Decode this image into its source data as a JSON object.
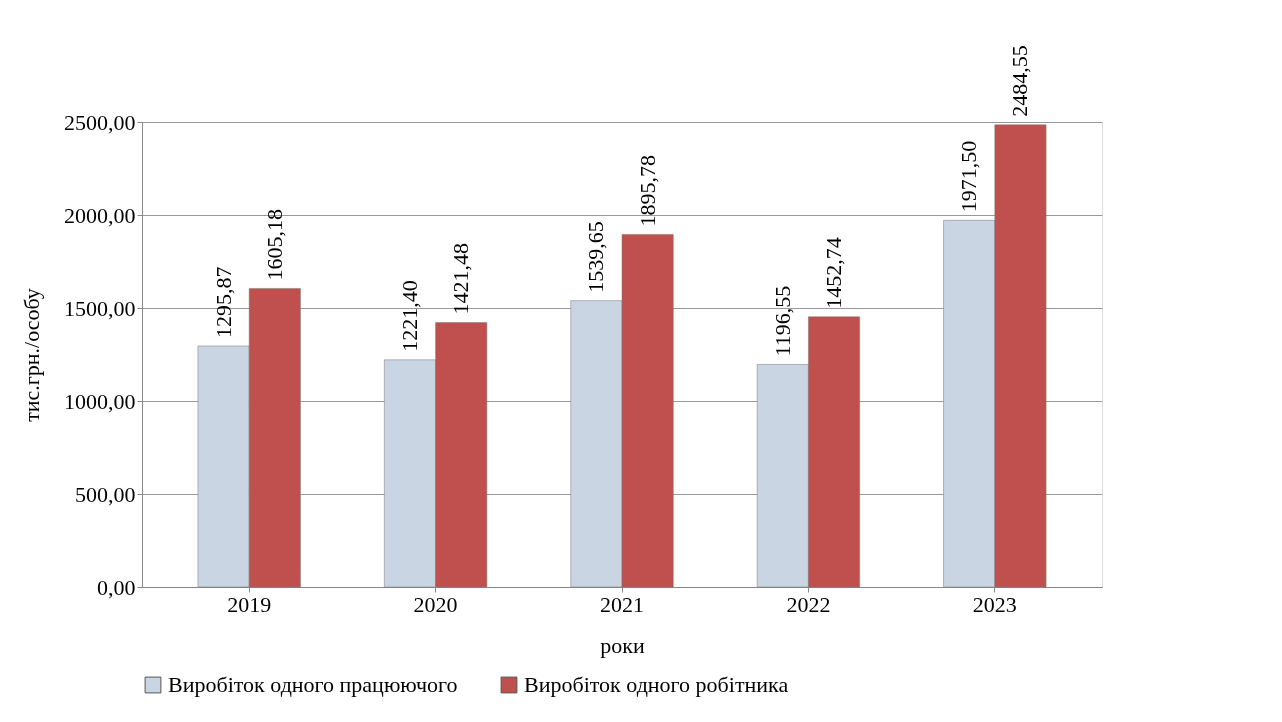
{
  "chart_data": {
    "type": "bar",
    "xlabel": "роки",
    "ylabel": "тис.грн./особу",
    "categories": [
      "2019",
      "2020",
      "2021",
      "2022",
      "2023"
    ],
    "series": [
      {
        "name": "Виробіток одного працюючого",
        "color": "#c9d5e3",
        "values": [
          1295.87,
          1221.4,
          1539.65,
          1196.55,
          1971.5
        ],
        "value_labels": [
          "1295,87",
          "1221,40",
          "1539,65",
          "1196,55",
          "1971,50"
        ]
      },
      {
        "name": "Виробіток одного робітника",
        "color": "#c0504d",
        "values": [
          1605.18,
          1421.48,
          1895.78,
          1452.74,
          2484.55
        ],
        "value_labels": [
          "1605,18",
          "1421,48",
          "1895,78",
          "1452,74",
          "2484,55"
        ]
      }
    ],
    "ylim": [
      0,
      2500
    ],
    "yticks": [
      {
        "value": 0,
        "label": "0,00"
      },
      {
        "value": 500,
        "label": "500,00"
      },
      {
        "value": 1000,
        "label": "1000,00"
      },
      {
        "value": 1500,
        "label": "1500,00"
      },
      {
        "value": 2000,
        "label": "2000,00"
      },
      {
        "value": 2500,
        "label": "2500,00"
      }
    ],
    "grid": "y",
    "legend": "bottom"
  }
}
